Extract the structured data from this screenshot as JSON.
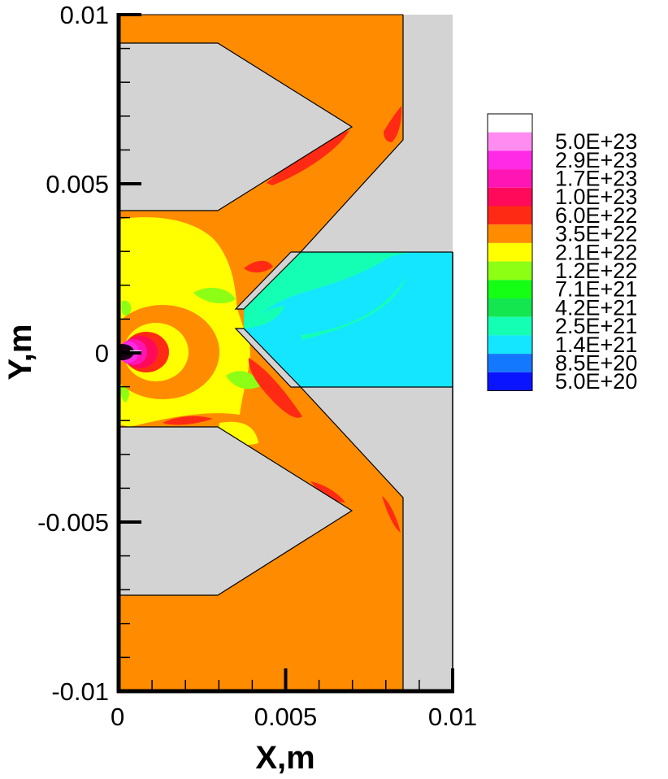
{
  "chart_data": {
    "type": "heatmap",
    "xlabel": "X,m",
    "ylabel": "Y,m",
    "xlim": [
      0,
      0.01
    ],
    "ylim": [
      -0.01,
      0.01
    ],
    "x_ticks": [
      {
        "value": 0,
        "label": "0"
      },
      {
        "value": 0.005,
        "label": "0.005"
      },
      {
        "value": 0.01,
        "label": "0.01"
      }
    ],
    "y_ticks": [
      {
        "value": 0.01,
        "label": "0.01"
      },
      {
        "value": 0.005,
        "label": "0.005"
      },
      {
        "value": 0,
        "label": "0"
      },
      {
        "value": -0.005,
        "label": "-0.005"
      },
      {
        "value": -0.01,
        "label": "-0.01"
      }
    ],
    "legend": {
      "placement": "right",
      "levels": [
        {
          "label": "",
          "color": "#ffffff"
        },
        {
          "label": "5.0E+23",
          "color": "#ff8cf0"
        },
        {
          "label": "2.9E+23",
          "color": "#ff2ae6"
        },
        {
          "label": "1.7E+23",
          "color": "#ff14b4"
        },
        {
          "label": "1.0E+23",
          "color": "#ff0a5a"
        },
        {
          "label": "6.0E+22",
          "color": "#ff2a14"
        },
        {
          "label": "3.5E+22",
          "color": "#ff8c00"
        },
        {
          "label": "2.1E+22",
          "color": "#ffff00"
        },
        {
          "label": "1.2E+22",
          "color": "#8cff14"
        },
        {
          "label": "7.1E+21",
          "color": "#14ff14"
        },
        {
          "label": "4.2E+21",
          "color": "#14e650"
        },
        {
          "label": "2.5E+21",
          "color": "#14ffb4"
        },
        {
          "label": "1.4E+21",
          "color": "#14e6ff"
        },
        {
          "label": "8.5E+20",
          "color": "#1478ff"
        },
        {
          "label": "5.0E+20",
          "color": "#0a14ff"
        }
      ]
    },
    "colors": {
      "solid": "#d3d3d3",
      "background_level": "#ff8c00",
      "core": "#1a0014"
    }
  }
}
